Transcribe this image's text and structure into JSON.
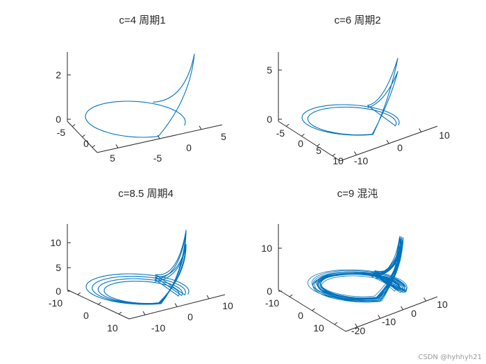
{
  "figure": {
    "watermark": "CSDN @hyhhyh21",
    "line_color": "#0072BD",
    "axis_color": "#262626"
  },
  "chart_data": [
    {
      "type": "line",
      "title": "c=4 周期1",
      "xlim": [
        -5,
        5
      ],
      "ylim": [
        -5,
        5
      ],
      "zlim": [
        0,
        3
      ],
      "x_ticks": [
        "-5",
        "0",
        "5"
      ],
      "y_ticks": [
        "-5",
        "0",
        "5"
      ],
      "z_ticks": [
        "0",
        "2"
      ],
      "grid": false,
      "attractor": {
        "period": 1,
        "loop_turns": 1,
        "spike_height": 2.9,
        "max_radius": 6,
        "chaotic": false
      }
    },
    {
      "type": "line",
      "title": "c=6 周期2",
      "xlim": [
        -10,
        10
      ],
      "ylim": [
        -10,
        10
      ],
      "zlim": [
        0,
        7
      ],
      "x_ticks": [
        "-5",
        "0",
        "5",
        "10"
      ],
      "y_ticks": [
        "-10",
        "0",
        "10"
      ],
      "z_ticks": [
        "0",
        "5"
      ],
      "grid": false,
      "attractor": {
        "period": 2,
        "loop_turns": 2,
        "spike_height": 6.2,
        "max_radius": 9,
        "chaotic": false
      }
    },
    {
      "type": "line",
      "title": "c=8.5 周期4",
      "xlim": [
        -10,
        15
      ],
      "ylim": [
        -15,
        15
      ],
      "zlim": [
        0,
        14
      ],
      "x_ticks": [
        "-10",
        "0",
        "10"
      ],
      "y_ticks": [
        "-10",
        "0",
        "10"
      ],
      "z_ticks": [
        "0",
        "5",
        "10"
      ],
      "grid": false,
      "attractor": {
        "period": 4,
        "loop_turns": 4,
        "spike_height": 13,
        "max_radius": 13,
        "chaotic": false
      }
    },
    {
      "type": "line",
      "title": "c=9 混沌",
      "xlim": [
        -10,
        15
      ],
      "ylim": [
        -20,
        15
      ],
      "zlim": [
        0,
        15
      ],
      "x_ticks": [
        "-10",
        "0",
        "10"
      ],
      "y_ticks": [
        "-20",
        "-10",
        "0",
        "10"
      ],
      "z_ticks": [
        "0",
        "10"
      ],
      "grid": false,
      "attractor": {
        "period": null,
        "loop_turns": 18,
        "spike_height": 14,
        "max_radius": 14,
        "chaotic": true
      }
    }
  ]
}
